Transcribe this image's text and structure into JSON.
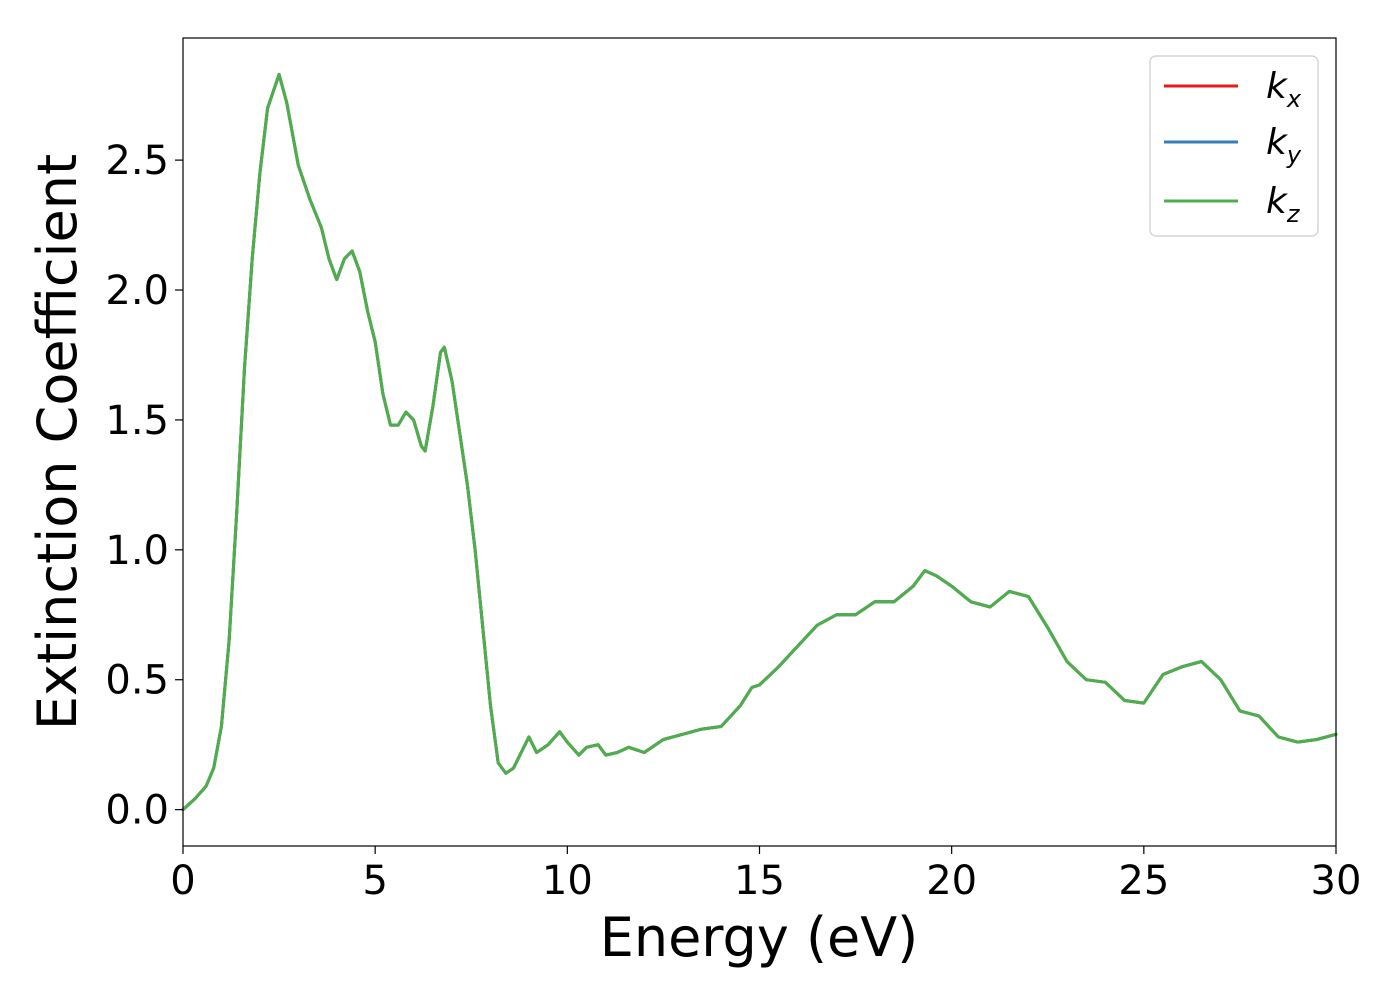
{
  "chart_data": {
    "type": "line",
    "xlabel": "Energy (eV)",
    "ylabel": "Extinction Coefficient",
    "xlim": [
      0,
      30
    ],
    "ylim": [
      -0.14,
      2.97
    ],
    "xticks": [
      0,
      5,
      10,
      15,
      20,
      25,
      30
    ],
    "yticks": [
      0.0,
      0.5,
      1.0,
      1.5,
      2.0,
      2.5
    ],
    "xtick_labels": [
      "0",
      "5",
      "10",
      "15",
      "20",
      "25",
      "30"
    ],
    "ytick_labels": [
      "0.0",
      "0.5",
      "1.0",
      "1.5",
      "2.0",
      "2.5"
    ],
    "grid": false,
    "legend_position": "top-right",
    "x": [
      0,
      0.3,
      0.6,
      0.8,
      1.0,
      1.2,
      1.4,
      1.6,
      1.8,
      2.0,
      2.2,
      2.5,
      2.7,
      3.0,
      3.3,
      3.6,
      3.8,
      4.0,
      4.2,
      4.4,
      4.6,
      4.8,
      5.0,
      5.2,
      5.4,
      5.6,
      5.8,
      6.0,
      6.2,
      6.3,
      6.5,
      6.7,
      6.8,
      7.0,
      7.2,
      7.4,
      7.6,
      7.8,
      8.0,
      8.2,
      8.4,
      8.6,
      8.8,
      9.0,
      9.2,
      9.5,
      9.8,
      10.0,
      10.3,
      10.5,
      10.8,
      11.0,
      11.3,
      11.6,
      12.0,
      12.5,
      13.0,
      13.5,
      14.0,
      14.5,
      14.8,
      15.0,
      15.5,
      16.0,
      16.5,
      17.0,
      17.5,
      18.0,
      18.5,
      19.0,
      19.3,
      19.6,
      20.0,
      20.5,
      21.0,
      21.5,
      22.0,
      22.5,
      23.0,
      23.5,
      24.0,
      24.5,
      25.0,
      25.5,
      26.0,
      26.5,
      27.0,
      27.5,
      28.0,
      28.5,
      29.0,
      29.5,
      30.0
    ],
    "series": [
      {
        "name": "k_x",
        "color": "#e41a1c",
        "values": [
          0.0,
          0.04,
          0.09,
          0.16,
          0.32,
          0.65,
          1.15,
          1.7,
          2.12,
          2.45,
          2.7,
          2.83,
          2.72,
          2.48,
          2.35,
          2.24,
          2.12,
          2.04,
          2.12,
          2.15,
          2.07,
          1.92,
          1.8,
          1.6,
          1.48,
          1.48,
          1.53,
          1.5,
          1.4,
          1.38,
          1.55,
          1.76,
          1.78,
          1.65,
          1.45,
          1.25,
          1.0,
          0.7,
          0.4,
          0.18,
          0.14,
          0.16,
          0.22,
          0.28,
          0.22,
          0.25,
          0.3,
          0.26,
          0.21,
          0.24,
          0.25,
          0.21,
          0.22,
          0.24,
          0.22,
          0.27,
          0.29,
          0.31,
          0.32,
          0.4,
          0.47,
          0.48,
          0.55,
          0.63,
          0.71,
          0.75,
          0.75,
          0.8,
          0.8,
          0.86,
          0.92,
          0.9,
          0.86,
          0.8,
          0.78,
          0.84,
          0.82,
          0.7,
          0.57,
          0.5,
          0.49,
          0.42,
          0.41,
          0.52,
          0.55,
          0.57,
          0.5,
          0.38,
          0.36,
          0.28,
          0.26,
          0.27,
          0.29
        ]
      },
      {
        "name": "k_y",
        "color": "#377eb8",
        "values": [
          0.0,
          0.04,
          0.09,
          0.16,
          0.32,
          0.65,
          1.15,
          1.7,
          2.12,
          2.45,
          2.7,
          2.83,
          2.72,
          2.48,
          2.35,
          2.24,
          2.12,
          2.04,
          2.12,
          2.15,
          2.07,
          1.92,
          1.8,
          1.6,
          1.48,
          1.48,
          1.53,
          1.5,
          1.4,
          1.38,
          1.55,
          1.76,
          1.78,
          1.65,
          1.45,
          1.25,
          1.0,
          0.7,
          0.4,
          0.18,
          0.14,
          0.16,
          0.22,
          0.28,
          0.22,
          0.25,
          0.3,
          0.26,
          0.21,
          0.24,
          0.25,
          0.21,
          0.22,
          0.24,
          0.22,
          0.27,
          0.29,
          0.31,
          0.32,
          0.4,
          0.47,
          0.48,
          0.55,
          0.63,
          0.71,
          0.75,
          0.75,
          0.8,
          0.8,
          0.86,
          0.92,
          0.9,
          0.86,
          0.8,
          0.78,
          0.84,
          0.82,
          0.7,
          0.57,
          0.5,
          0.49,
          0.42,
          0.41,
          0.52,
          0.55,
          0.57,
          0.5,
          0.38,
          0.36,
          0.28,
          0.26,
          0.27,
          0.29
        ]
      },
      {
        "name": "k_z",
        "color": "#4daf4a",
        "values": [
          0.0,
          0.04,
          0.09,
          0.16,
          0.32,
          0.65,
          1.15,
          1.7,
          2.12,
          2.45,
          2.7,
          2.83,
          2.72,
          2.48,
          2.35,
          2.24,
          2.12,
          2.04,
          2.12,
          2.15,
          2.07,
          1.92,
          1.8,
          1.6,
          1.48,
          1.48,
          1.53,
          1.5,
          1.4,
          1.38,
          1.55,
          1.76,
          1.78,
          1.65,
          1.45,
          1.25,
          1.0,
          0.7,
          0.4,
          0.18,
          0.14,
          0.16,
          0.22,
          0.28,
          0.22,
          0.25,
          0.3,
          0.26,
          0.21,
          0.24,
          0.25,
          0.21,
          0.22,
          0.24,
          0.22,
          0.27,
          0.29,
          0.31,
          0.32,
          0.4,
          0.47,
          0.48,
          0.55,
          0.63,
          0.71,
          0.75,
          0.75,
          0.8,
          0.8,
          0.86,
          0.92,
          0.9,
          0.86,
          0.8,
          0.78,
          0.84,
          0.82,
          0.7,
          0.57,
          0.5,
          0.49,
          0.42,
          0.41,
          0.52,
          0.55,
          0.57,
          0.5,
          0.38,
          0.36,
          0.28,
          0.26,
          0.27,
          0.29
        ]
      }
    ],
    "legend": [
      {
        "base": "k",
        "sub": "x",
        "color": "#e41a1c"
      },
      {
        "base": "k",
        "sub": "y",
        "color": "#377eb8"
      },
      {
        "base": "k",
        "sub": "z",
        "color": "#4daf4a"
      }
    ]
  }
}
